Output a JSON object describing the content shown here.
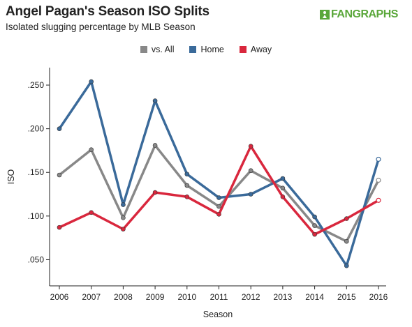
{
  "header": {
    "title": "Angel Pagan's Season ISO Splits",
    "subtitle": "Isolated slugging percentage by MLB Season",
    "brand": "FANGRAPHS"
  },
  "colors": {
    "vs_all": "#888888",
    "home": "#3a6a9a",
    "away": "#d9273d",
    "brand_green": "#5aa73a"
  },
  "chart_data": {
    "type": "line",
    "title": "Angel Pagan's Season ISO Splits",
    "subtitle": "Isolated slugging percentage by MLB Season",
    "xlabel": "Season",
    "ylabel": "ISO",
    "categories": [
      "2006",
      "2007",
      "2008",
      "2009",
      "2010",
      "2011",
      "2012",
      "2013",
      "2014",
      "2015",
      "2016"
    ],
    "ylim": [
      0.02,
      0.27
    ],
    "yticks": [
      ".050",
      ".100",
      ".150",
      ".200",
      ".250"
    ],
    "ytick_values": [
      0.05,
      0.1,
      0.15,
      0.2,
      0.25
    ],
    "legend_position": "top-center",
    "grid": false,
    "series": [
      {
        "name": "vs. All",
        "color": "#888888",
        "values": [
          0.147,
          0.176,
          0.098,
          0.181,
          0.135,
          0.111,
          0.152,
          0.132,
          0.089,
          0.071,
          0.141
        ]
      },
      {
        "name": "Home",
        "color": "#3a6a9a",
        "values": [
          0.2,
          0.254,
          0.113,
          0.232,
          0.148,
          0.121,
          0.125,
          0.143,
          0.099,
          0.043,
          0.165
        ]
      },
      {
        "name": "Away",
        "color": "#d9273d",
        "values": [
          0.087,
          0.104,
          0.085,
          0.127,
          0.122,
          0.102,
          0.18,
          0.122,
          0.079,
          0.097,
          0.118
        ]
      }
    ]
  }
}
